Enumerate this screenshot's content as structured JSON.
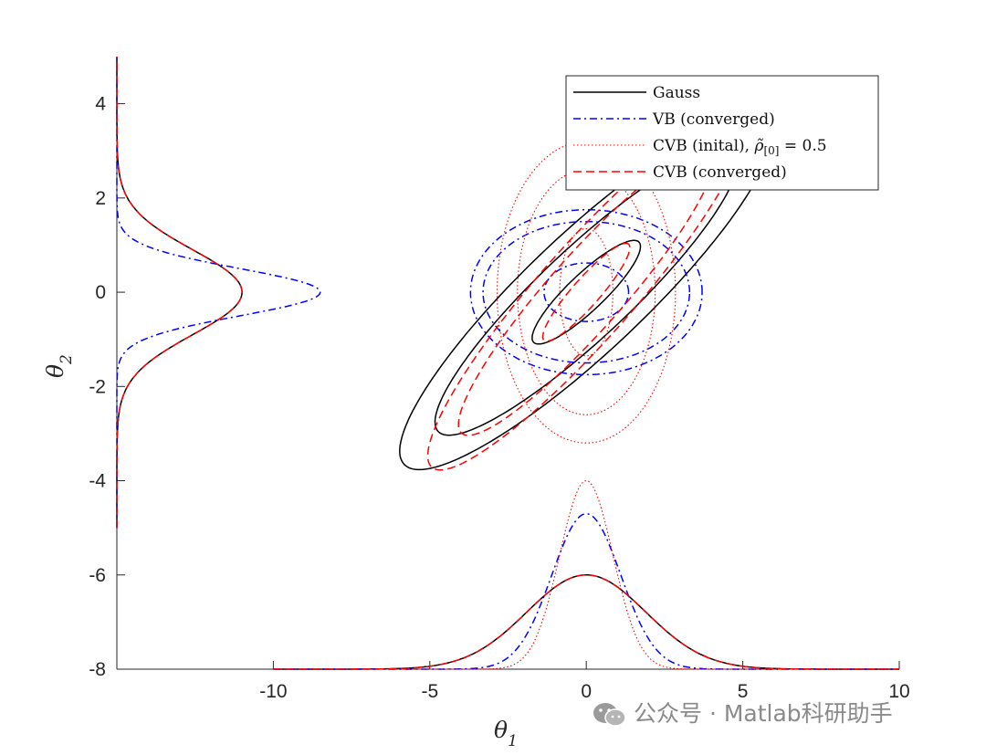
{
  "chart_data": {
    "type": "line",
    "title": "",
    "xlabel": "θ",
    "xlabel_sub": "1",
    "ylabel": "θ",
    "ylabel_sub": "2",
    "xlim": [
      -15,
      10
    ],
    "ylim": [
      -8,
      5
    ],
    "x_ticks": [
      "-10",
      "-5",
      "0",
      "5",
      "10"
    ],
    "x_tick_values": [
      -10,
      -5,
      0,
      5,
      10
    ],
    "y_ticks": [
      "4",
      "2",
      "0",
      "-2",
      "-4",
      "-6",
      "-8"
    ],
    "y_tick_values": [
      4,
      2,
      0,
      -2,
      -4,
      -6,
      -8
    ],
    "grid": false,
    "legend_position": "top-right",
    "legend": [
      {
        "label": "Gauss",
        "color": "#000000",
        "style": "solid"
      },
      {
        "label": "VB (converged)",
        "color": "#0000ff",
        "style": "dashdot"
      },
      {
        "label": "CVB (inital), ",
        "math": "ρ̃",
        "math_sub": "[0]",
        "math_tail": " = 0.5",
        "color": "#ff0000",
        "style": "dotted"
      },
      {
        "label": "CVB (converged)",
        "color": "#ff0000",
        "style": "dashed"
      }
    ],
    "series": [
      {
        "name": "Gauss",
        "color": "#000000",
        "style": "solid",
        "ellipses": [
          {
            "cx": 0,
            "cy": 0,
            "a": 2.0,
            "b": 0.45,
            "angle_deg": 31
          },
          {
            "cx": 0,
            "cy": 0,
            "a": 5.6,
            "b": 1.1,
            "angle_deg": 31
          },
          {
            "cx": 0,
            "cy": 0,
            "a": 6.9,
            "b": 1.45,
            "angle_deg": 31
          }
        ],
        "marginal_x": {
          "mu": 0,
          "sigma": 1.9,
          "peak_y": -6.0,
          "base_y": -8.0
        },
        "marginal_y": {
          "mu": 0,
          "sigma": 0.9,
          "peak_x": -11.0,
          "base_x": -15.0
        }
      },
      {
        "name": "VB (converged)",
        "color": "#0000ff",
        "style": "dashdot",
        "ellipses": [
          {
            "cx": 0,
            "cy": 0,
            "rx": 1.35,
            "ry": 0.62,
            "angle_deg": 0
          },
          {
            "cx": 0,
            "cy": 0,
            "rx": 3.3,
            "ry": 1.5,
            "angle_deg": 0
          },
          {
            "cx": 0,
            "cy": 0,
            "rx": 3.7,
            "ry": 1.75,
            "angle_deg": 0
          }
        ],
        "marginal_x": {
          "mu": 0,
          "sigma": 1.1,
          "peak_y": -4.7,
          "base_y": -8.0
        },
        "marginal_y": {
          "mu": 0,
          "sigma": 0.5,
          "peak_x": -8.5,
          "base_x": -15.0
        }
      },
      {
        "name": "CVB (inital)",
        "color": "#ff0000",
        "style": "dotted",
        "ellipses": [
          {
            "cx": 0,
            "cy": 0,
            "rx": 0.85,
            "ry": 1.35,
            "angle_deg": 0
          },
          {
            "cx": 0,
            "cy": 0,
            "rx": 2.2,
            "ry": 2.6,
            "angle_deg": 0
          },
          {
            "cx": 0,
            "cy": 0,
            "rx": 2.85,
            "ry": 3.2,
            "angle_deg": 0
          }
        ],
        "marginal_x": {
          "mu": 0,
          "sigma": 0.85,
          "peak_y": -4.0,
          "base_y": -8.0
        }
      },
      {
        "name": "CVB (converged)",
        "color": "#ff0000",
        "style": "dashed",
        "ellipses": [
          {
            "cx": 0,
            "cy": 0,
            "a": 1.7,
            "b": 0.35,
            "angle_deg": 36
          },
          {
            "cx": 0,
            "cy": 0,
            "a": 5.0,
            "b": 0.95,
            "angle_deg": 36
          },
          {
            "cx": 0,
            "cy": 0,
            "a": 6.2,
            "b": 1.2,
            "angle_deg": 36
          }
        ],
        "marginal_x": {
          "mu": 0,
          "sigma": 1.9,
          "peak_y": -6.0,
          "base_y": -8.0
        },
        "marginal_y": {
          "mu": 0,
          "sigma": 0.9,
          "peak_x": -11.0,
          "base_x": -15.0
        }
      }
    ]
  },
  "watermark": {
    "text": "公众号 · Matlab科研助手",
    "icon": "wechat-icon"
  }
}
